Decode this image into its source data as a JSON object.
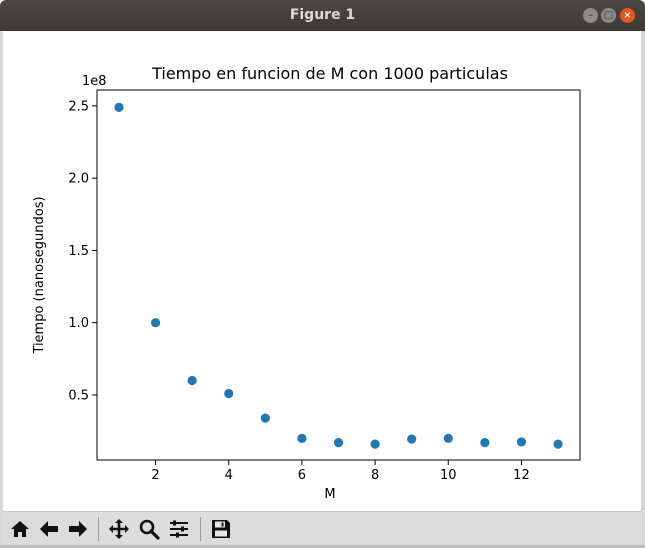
{
  "window": {
    "title": "Figure 1",
    "buttons": {
      "minimize": "–",
      "maximize": "□",
      "close": "×"
    }
  },
  "toolbar": {
    "items": [
      {
        "name": "home-icon",
        "tooltip": "Home"
      },
      {
        "name": "back-arrow-icon",
        "tooltip": "Back"
      },
      {
        "name": "forward-arrow-icon",
        "tooltip": "Forward"
      },
      {
        "name": "pan-icon",
        "tooltip": "Pan"
      },
      {
        "name": "zoom-icon",
        "tooltip": "Zoom"
      },
      {
        "name": "subplots-icon",
        "tooltip": "Configure subplots"
      },
      {
        "name": "save-icon",
        "tooltip": "Save"
      }
    ]
  },
  "chart_data": {
    "type": "scatter",
    "title": "Tiempo en funcion de M con 1000 particulas",
    "xlabel": "M",
    "ylabel": "Tiempo (nanosegundos)",
    "offset_label": "1e8",
    "x": [
      1,
      2,
      3,
      4,
      5,
      6,
      7,
      8,
      9,
      10,
      11,
      12,
      13
    ],
    "y": [
      2.49,
      1.0,
      0.6,
      0.51,
      0.34,
      0.2,
      0.17,
      0.16,
      0.195,
      0.2,
      0.17,
      0.175,
      0.16
    ],
    "xlim": [
      0.4,
      13.6
    ],
    "ylim": [
      0.05,
      2.61
    ],
    "xticks": [
      2,
      4,
      6,
      8,
      10,
      12
    ],
    "xtick_labels": [
      "2",
      "4",
      "6",
      "8",
      "10",
      "12"
    ],
    "yticks": [
      0.5,
      1.0,
      1.5,
      2.0,
      2.5
    ],
    "ytick_labels": [
      "0.5",
      "1.0",
      "1.5",
      "2.0",
      "2.5"
    ],
    "marker_color": "#1f77b4",
    "grid": false
  }
}
